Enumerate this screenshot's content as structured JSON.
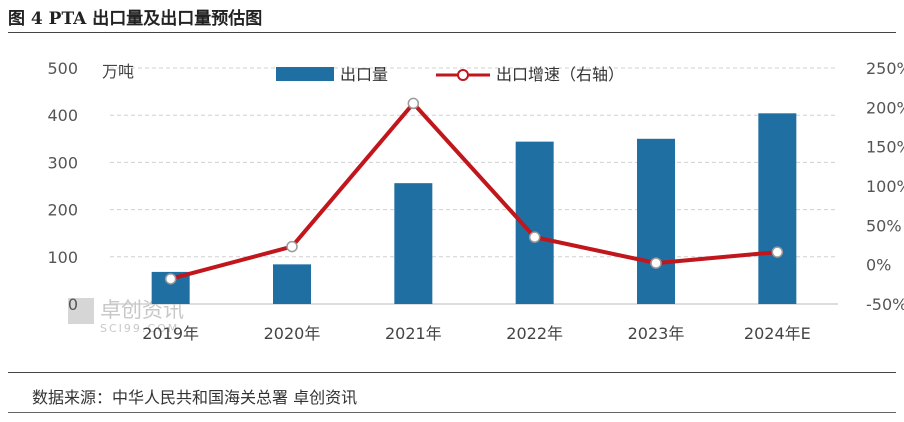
{
  "figure_title": "图 4 PTA 出口量及出口量预估图",
  "source_note": "数据来源：中华人民共和国海关总署 卓创资讯",
  "watermark": {
    "text": "卓创资讯",
    "sub": "SCI99.COM"
  },
  "colors": {
    "bar": "#1f6fa3",
    "line": "#c0161c",
    "marker_fill": "#ffffff",
    "grid": "#d0d0d0"
  },
  "chart_data": {
    "type": "bar",
    "title": "",
    "left_unit": "万吨",
    "categories": [
      "2019年",
      "2020年",
      "2021年",
      "2022年",
      "2023年",
      "2024年E"
    ],
    "series": [
      {
        "name": "出口量",
        "kind": "bar",
        "axis": "left",
        "values": [
          68,
          84,
          256,
          344,
          350,
          404
        ]
      },
      {
        "name": "出口增速（右轴）",
        "kind": "line",
        "axis": "right",
        "values": [
          -18,
          23,
          205,
          35,
          2,
          16
        ]
      }
    ],
    "ylim_left": [
      0,
      500
    ],
    "yticks_left": [
      "0",
      "100",
      "200",
      "300",
      "400",
      "500"
    ],
    "ylim_right": [
      -50,
      250
    ],
    "yticks_right": [
      "-50%",
      "0%",
      "50%",
      "100%",
      "150%",
      "200%",
      "250%"
    ],
    "grid": true,
    "legend_position": "top"
  }
}
